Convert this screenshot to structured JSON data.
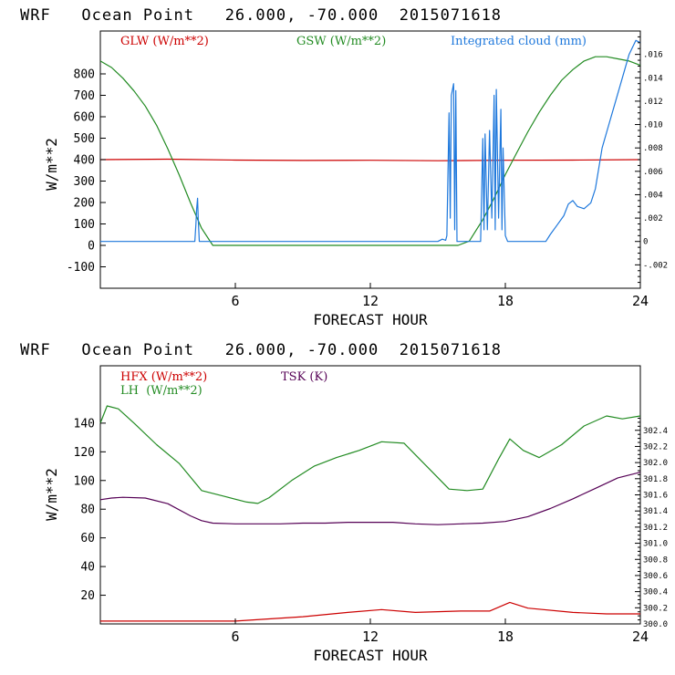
{
  "chart_data": [
    {
      "type": "line",
      "title": "WRF   Ocean Point   26.000, -70.000  2015071618",
      "xlabel": "FORECAST HOUR",
      "ylabel": "W/m**2",
      "xlim": [
        0,
        24
      ],
      "ylim": [
        -200,
        1000
      ],
      "right_ylim": [
        -0.004,
        0.018
      ],
      "x_ticks": [
        "6",
        "12",
        "18",
        "24"
      ],
      "y_ticks": [
        "-100",
        "0",
        "100",
        "200",
        "300",
        "400",
        "500",
        "600",
        "700",
        "800"
      ],
      "right_ticks": [
        "-.002",
        "0",
        ".002",
        ".004",
        ".006",
        ".008",
        ".010",
        ".012",
        ".014",
        ".016"
      ],
      "series": [
        {
          "name": "GLW (W/m**2)",
          "color": "#cc0000",
          "axis": "left",
          "x": [
            0,
            3,
            6,
            9,
            12,
            15,
            18,
            21,
            24
          ],
          "y": [
            400,
            402,
            398,
            396,
            397,
            395,
            397,
            398,
            400
          ]
        },
        {
          "name": "GSW (W/m**2)",
          "color": "#228b22",
          "axis": "left",
          "x": [
            0,
            0.5,
            1,
            1.5,
            2,
            2.5,
            3,
            3.5,
            4,
            4.5,
            5,
            5.5,
            6,
            15.9,
            16.4,
            17,
            17.5,
            18,
            18.5,
            19,
            19.5,
            20,
            20.5,
            21,
            21.5,
            22,
            22.5,
            23,
            23.5,
            24
          ],
          "y": [
            860,
            830,
            780,
            720,
            650,
            560,
            450,
            330,
            200,
            80,
            0,
            0,
            0,
            0,
            20,
            120,
            220,
            330,
            430,
            530,
            620,
            700,
            770,
            820,
            860,
            880,
            880,
            870,
            860,
            840
          ]
        },
        {
          "name": "Integrated cloud (mm)",
          "color": "#1e78dc",
          "axis": "right",
          "x": [
            0,
            4.2,
            4.25,
            4.28,
            4.32,
            4.35,
            4.4,
            15.0,
            15.2,
            15.35,
            15.4,
            15.5,
            15.55,
            15.6,
            15.7,
            15.75,
            15.8,
            15.85,
            16.0,
            16.9,
            17.0,
            17.05,
            17.1,
            17.2,
            17.3,
            17.4,
            17.5,
            17.55,
            17.6,
            17.7,
            17.8,
            17.85,
            17.9,
            18.0,
            18.1,
            19.8,
            20.0,
            20.3,
            20.6,
            20.8,
            21.0,
            21.2,
            21.5,
            21.8,
            22.0,
            22.3,
            22.6,
            22.9,
            23.2,
            23.5,
            23.8,
            24.0
          ],
          "y": [
            0,
            0,
            0.0015,
            0.0028,
            0.0037,
            0.002,
            0,
            0,
            0.0002,
            0.0001,
            0.0005,
            0.011,
            0.002,
            0.0125,
            0.0135,
            0.001,
            0.0129,
            0,
            0,
            0,
            0.0088,
            0.001,
            0.0092,
            0.001,
            0.0095,
            0.002,
            0.0125,
            0.001,
            0.013,
            0.002,
            0.0113,
            0.001,
            0.008,
            0.0005,
            0,
            0,
            0.0006,
            0.0014,
            0.0022,
            0.0032,
            0.0035,
            0.003,
            0.0028,
            0.0033,
            0.0045,
            0.008,
            0.01,
            0.012,
            0.014,
            0.016,
            0.0172,
            0.017
          ]
        }
      ]
    },
    {
      "type": "line",
      "title": "WRF   Ocean Point   26.000, -70.000  2015071618",
      "xlabel": "FORECAST HOUR",
      "ylabel": "W/m**2",
      "xlim": [
        0,
        24
      ],
      "ylim": [
        0,
        180
      ],
      "right_ylim": [
        300.0,
        303.2
      ],
      "x_ticks": [
        "6",
        "12",
        "18",
        "24"
      ],
      "y_ticks": [
        "20",
        "40",
        "60",
        "80",
        "100",
        "120",
        "140"
      ],
      "right_ticks": [
        "300.0",
        "300.2",
        "300.4",
        "300.6",
        "300.8",
        "301.0",
        "301.2",
        "301.4",
        "301.6",
        "301.8",
        "302.0",
        "302.2",
        "302.4"
      ],
      "series": [
        {
          "name": "HFX (W/m**2)",
          "color": "#cc0000",
          "axis": "left",
          "x": [
            0,
            3,
            6,
            9,
            11,
            12.5,
            14,
            16,
            17.3,
            18.2,
            19,
            21,
            22.5,
            24
          ],
          "y": [
            2,
            2,
            2,
            5,
            8,
            10,
            8,
            9,
            9,
            15,
            11,
            8,
            7,
            7
          ]
        },
        {
          "name": "LH  (W/m**2)",
          "color": "#228b22",
          "axis": "left",
          "x": [
            0,
            0.3,
            0.8,
            1.5,
            2.5,
            3.5,
            4.5,
            5.5,
            6.5,
            7,
            7.5,
            8.5,
            9.5,
            10.5,
            11.5,
            12.5,
            13.5,
            14.5,
            15.5,
            16.3,
            17,
            17.7,
            18.2,
            18.8,
            19.5,
            20.5,
            21.5,
            22.5,
            23.2,
            24
          ],
          "y": [
            140,
            152,
            150,
            140,
            125,
            112,
            93,
            89,
            85,
            84,
            88,
            100,
            110,
            116,
            121,
            127,
            126,
            110,
            94,
            93,
            94,
            115,
            129,
            121,
            116,
            125,
            138,
            145,
            143,
            145
          ]
        },
        {
          "name": "TSK (K)",
          "color": "#550055",
          "axis": "right",
          "x": [
            0,
            0.5,
            1,
            2,
            3,
            4,
            4.5,
            5,
            6,
            7,
            8,
            9,
            10,
            11,
            12,
            13,
            14,
            15,
            16,
            17,
            18,
            19,
            20,
            21,
            22,
            23,
            24
          ],
          "y": [
            301.54,
            301.56,
            301.57,
            301.56,
            301.49,
            301.34,
            301.28,
            301.25,
            301.24,
            301.24,
            301.24,
            301.25,
            301.25,
            301.26,
            301.26,
            301.26,
            301.24,
            301.23,
            301.24,
            301.25,
            301.27,
            301.33,
            301.43,
            301.55,
            301.68,
            301.81,
            301.88
          ]
        }
      ]
    }
  ]
}
